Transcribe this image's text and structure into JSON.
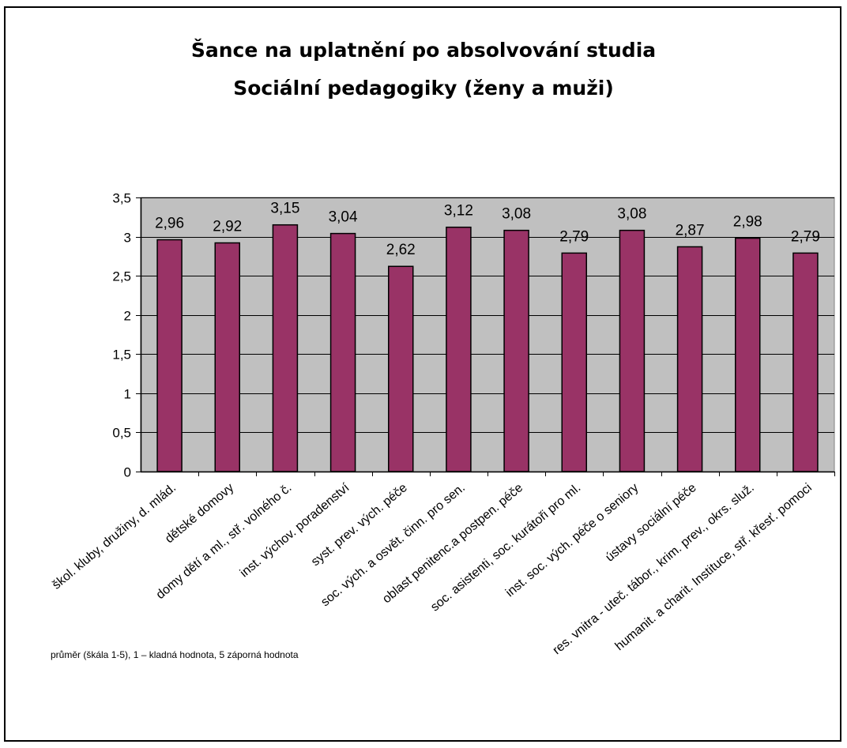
{
  "chart_data": {
    "type": "bar",
    "title": [
      "Šance na uplatnění po absolvování studia",
      "Sociální pedagogiky (ženy a muži)"
    ],
    "categories": [
      "škol. kluby, družiny, d. mlád.",
      "dětské domovy",
      "domy dětí a ml., stř. volného č.",
      "inst. výchov. poradenství",
      "syst. prev. vých. péče",
      "soc. vých. a osvět. činn. pro sen.",
      "oblast penitenc.a postpen. péče",
      "soc. asistenti, soc. kurátoři pro ml.",
      "inst. soc. vých. péče o seniory",
      "ústavy sociální péče",
      "res. vnitra - uteč. tábor., krim. prev., okrs. služ.",
      "humanit. a charit. Instituce, stř. křesť. pomoci"
    ],
    "values": [
      2.96,
      2.92,
      3.15,
      3.04,
      2.62,
      3.12,
      3.08,
      2.79,
      3.08,
      2.87,
      2.98,
      2.79
    ],
    "value_labels": [
      "2,96",
      "2,92",
      "3,15",
      "3,04",
      "2,62",
      "3,12",
      "3,08",
      "2,79",
      "3,08",
      "2,87",
      "2,98",
      "2,79"
    ],
    "yticks": [
      0,
      0.5,
      1,
      1.5,
      2,
      2.5,
      3,
      3.5
    ],
    "ytick_labels": [
      "0",
      "0,5",
      "1",
      "1,5",
      "2",
      "2,5",
      "3",
      "3,5"
    ],
    "ylim": [
      0,
      3.5
    ],
    "xlabel": "",
    "ylabel": "",
    "grid": true,
    "legend": "none",
    "colors": {
      "bar": "#993366",
      "plot_background": "#c0c0c0"
    }
  },
  "footnote": "průměr (škála 1-5), 1 – kladná hodnota, 5 záporná hodnota"
}
